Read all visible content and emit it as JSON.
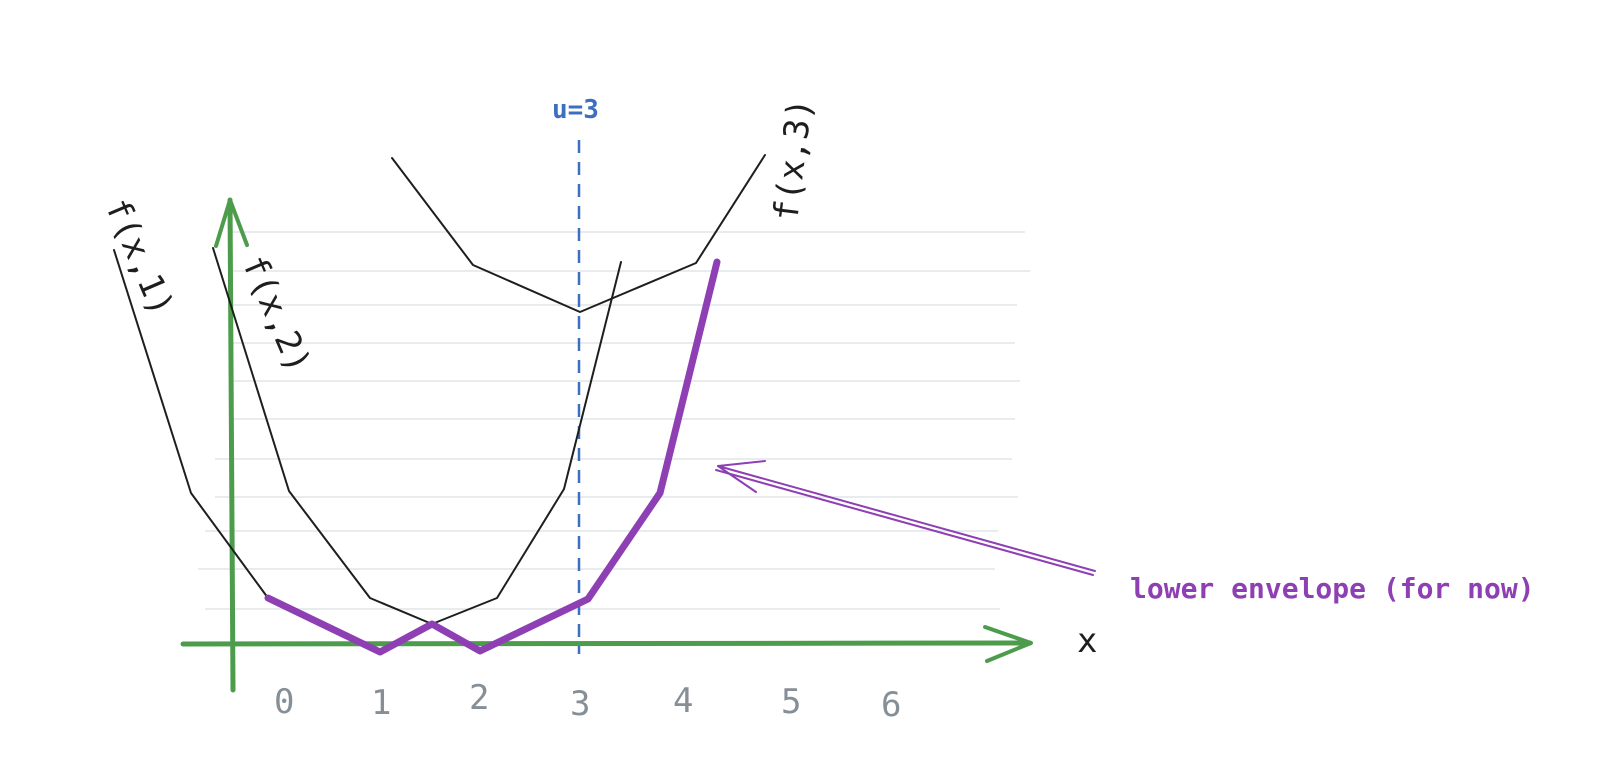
{
  "diagram": {
    "curve_labels": [
      "f(x,1)",
      "f(x,2)",
      "f(x,3)"
    ],
    "x_axis_label": "x",
    "x_ticks": [
      "0",
      "1",
      "2",
      "3",
      "4",
      "5",
      "6"
    ],
    "u_label": "u=3",
    "annotation": "lower envelope (for now)",
    "colors": {
      "axis": "#4c9c4c",
      "curve": "#1e1e1e",
      "envelope": "#8e3fb3",
      "u_line": "#3b6fbf",
      "grid": "#e9ecef",
      "tick": "#868e96"
    }
  }
}
